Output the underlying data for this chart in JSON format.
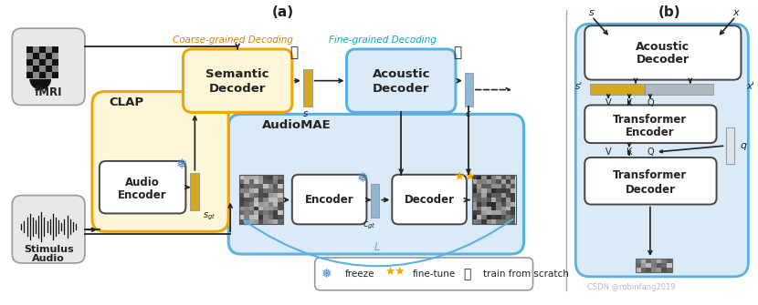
{
  "title_a": "(a)",
  "title_b": "(b)",
  "bg_color": "#ffffff",
  "light_blue": "#daeaf7",
  "light_yellow": "#fef6d8",
  "yellow_border": "#f0a500",
  "blue_border": "#5ab0e0",
  "gray_bg": "#e8e8e8",
  "gray_border": "#999999",
  "white": "#ffffff",
  "dark": "#222222",
  "orange_text": "#e08000",
  "cyan_text": "#00aacc",
  "freeze_color": "#4488cc",
  "finetune_color": "#f0a500",
  "gold_bar": "#d4a820",
  "blue_bar": "#90b8d0",
  "coarse_label": "Coarse-grained Decoding",
  "fine_label": "Fine-grained Decoding",
  "legend_freeze": "freeze",
  "legend_finetune": "fine-tune",
  "legend_scratch": "train from scratch",
  "watermark": "CSDN @robinfang2019"
}
